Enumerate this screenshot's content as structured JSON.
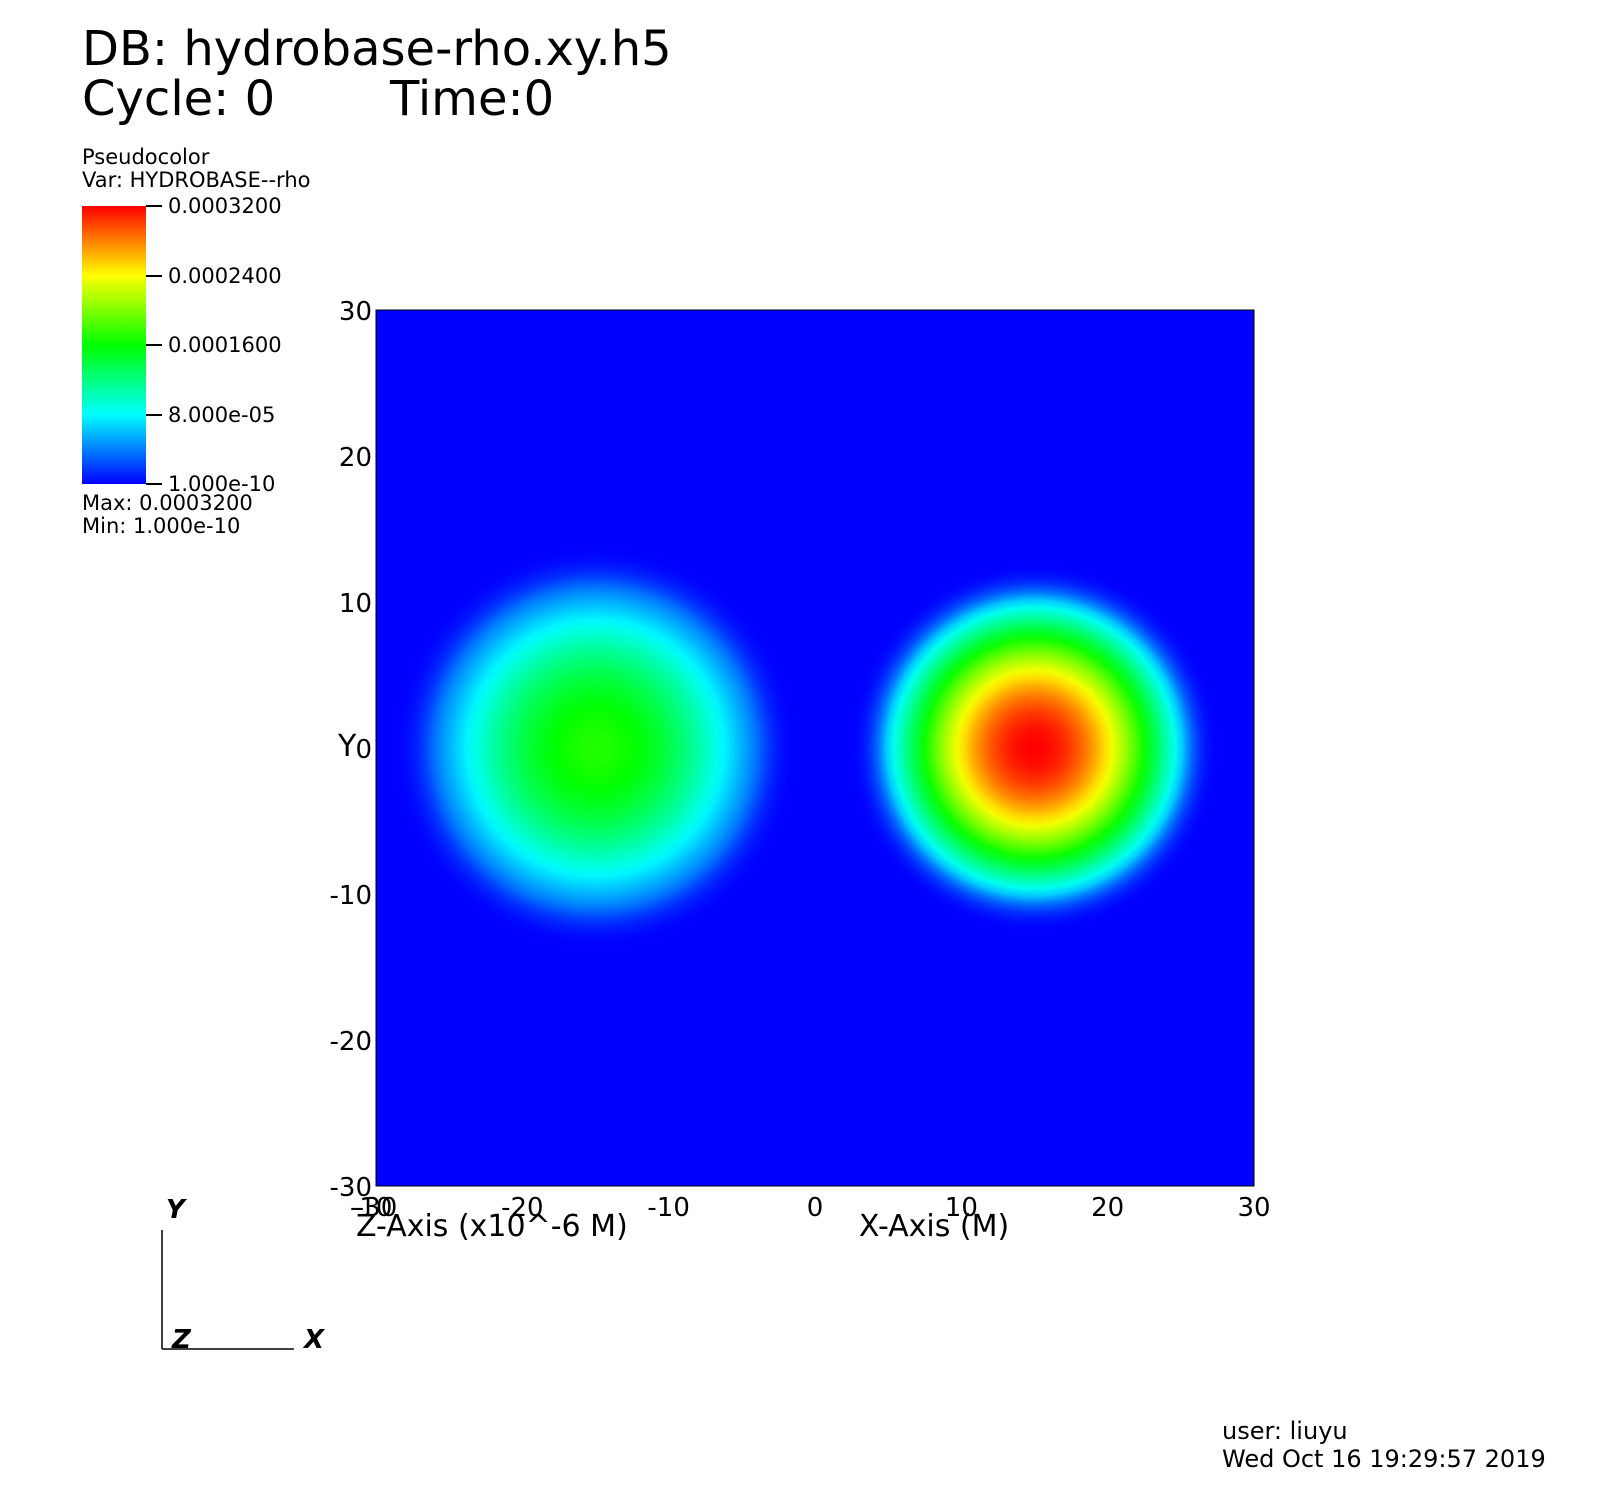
{
  "header": {
    "db_label": "DB: hydrobase-rho.xy.h5",
    "cycle_label": "Cycle: 0",
    "time_label": "Time:0"
  },
  "legend": {
    "plot_type": "Pseudocolor",
    "var_label": "Var: HYDROBASE--rho",
    "ticks": [
      "0.0003200",
      "0.0002400",
      "0.0001600",
      "8.000e-05",
      "1.000e-10"
    ],
    "max_label": "Max:  0.0003200",
    "min_label": "Min:  1.000e-10",
    "colors": [
      "#ff0000",
      "#ffff00",
      "#00ff00",
      "#00ffff",
      "#0000ff"
    ]
  },
  "chart_data": {
    "type": "heatmap",
    "xlabel": "X-Axis (M)",
    "ylabel": "Y",
    "zlabel": "Z-Axis (x10^-6 M)",
    "xlim": [
      -30,
      30
    ],
    "ylim": [
      -30,
      30
    ],
    "x_ticks": [
      "-30",
      "-20",
      "-10",
      "0",
      "10",
      "20",
      "30"
    ],
    "y_ticks": [
      "30",
      "20",
      "10",
      "0",
      "-10",
      "-20",
      "-30"
    ],
    "z_tick_overlap": "-10",
    "background_color": "#0000ff",
    "blobs": [
      {
        "center": [
          -15,
          0
        ],
        "radius": 11,
        "peak": 0.00017
      },
      {
        "center": [
          15,
          0
        ],
        "radius": 10,
        "peak": 0.00032
      }
    ]
  },
  "triad": {
    "y": "Y",
    "z": "Z",
    "x": "X"
  },
  "footer": {
    "user": "user: liuyu",
    "date": "Wed Oct 16 19:29:57 2019"
  }
}
